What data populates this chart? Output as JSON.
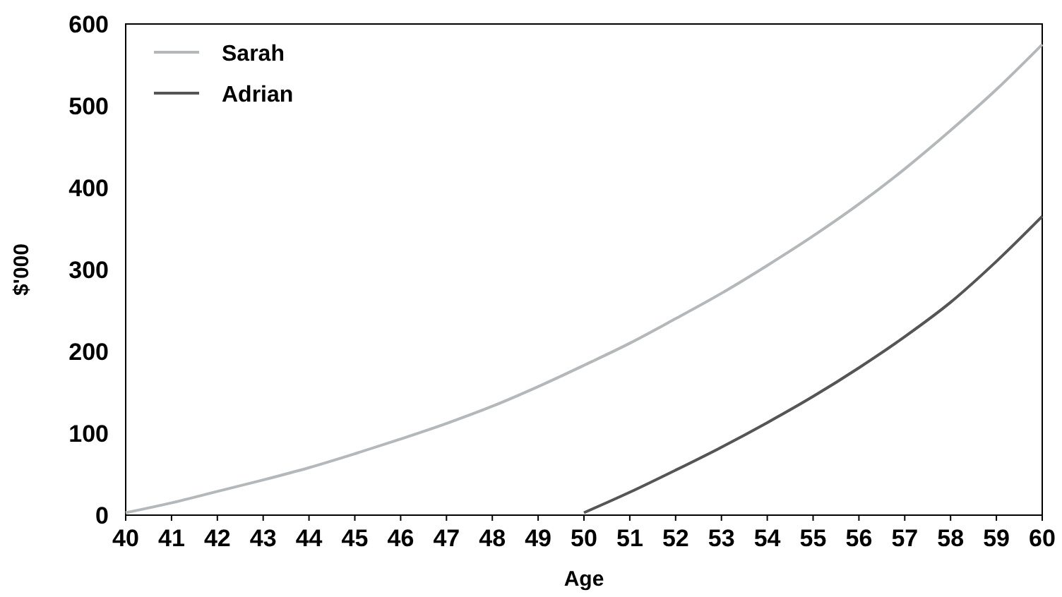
{
  "chart_data": {
    "type": "line",
    "xlabel": "Age",
    "ylabel": "$'000",
    "x": [
      40,
      41,
      42,
      43,
      44,
      45,
      46,
      47,
      48,
      49,
      50,
      51,
      52,
      53,
      54,
      55,
      56,
      57,
      58,
      59,
      60
    ],
    "series": [
      {
        "name": "Sarah",
        "color": "#b4b8ba",
        "values": [
          3,
          15,
          29,
          43,
          58,
          75,
          93,
          112,
          133,
          157,
          183,
          210,
          240,
          271,
          305,
          341,
          380,
          423,
          470,
          520,
          575
        ]
      },
      {
        "name": "Adrian",
        "color": "#555555",
        "values": [
          null,
          null,
          null,
          null,
          null,
          null,
          null,
          null,
          null,
          null,
          3,
          28,
          55,
          83,
          113,
          145,
          180,
          218,
          260,
          310,
          365
        ]
      }
    ],
    "xlim": [
      40,
      60
    ],
    "xticks": [
      40,
      41,
      42,
      43,
      44,
      45,
      46,
      47,
      48,
      49,
      50,
      51,
      52,
      53,
      54,
      55,
      56,
      57,
      58,
      59,
      60
    ],
    "ylim": [
      0,
      600
    ],
    "yticks": [
      0,
      100,
      200,
      300,
      400,
      500,
      600
    ],
    "grid": false,
    "legend": "top left",
    "marker": "none",
    "line_style": "solid"
  }
}
